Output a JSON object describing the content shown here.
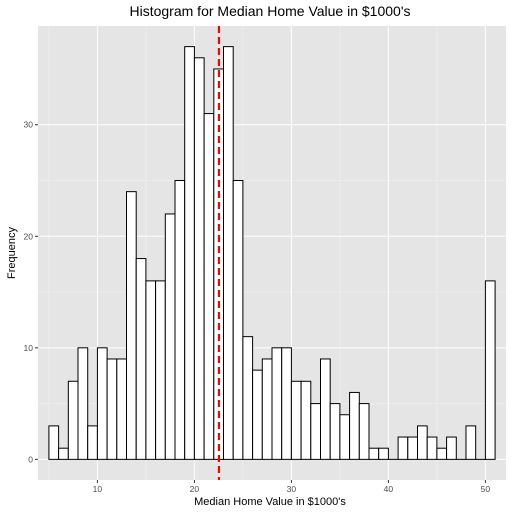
{
  "chart_data": {
    "type": "bar",
    "subtype": "histogram",
    "title": "Histogram for Median Home Value in $1000's",
    "xlabel": "Median Home Value in $1000's",
    "ylabel": "Frequency",
    "xlim": [
      3.875,
      52.125
    ],
    "ylim": [
      -1.85,
      38.85
    ],
    "bin_start": 5,
    "bin_width": 1,
    "values": [
      3,
      1,
      7,
      10,
      3,
      10,
      9,
      9,
      24,
      18,
      16,
      16,
      22,
      25,
      37,
      36,
      31,
      35,
      37,
      25,
      11,
      8,
      9,
      10,
      10,
      7,
      7,
      5,
      9,
      5,
      4,
      6,
      5,
      1,
      1,
      0,
      2,
      2,
      3,
      2,
      1,
      2,
      0,
      3,
      0,
      16
    ],
    "x_ticks": [
      10,
      20,
      30,
      40,
      50
    ],
    "x_tick_labels": [
      "10",
      "20",
      "30",
      "40",
      "50"
    ],
    "y_ticks": [
      0,
      10,
      20,
      30
    ],
    "y_tick_labels": [
      "0",
      "10",
      "20",
      "30"
    ],
    "reference_line": {
      "x": 22.53,
      "style": "dashed",
      "color": "#ff0000"
    },
    "grid": true,
    "panel_background": "#e5e5e5",
    "bar_fill": "#ffffff",
    "bar_stroke": "#000000"
  }
}
